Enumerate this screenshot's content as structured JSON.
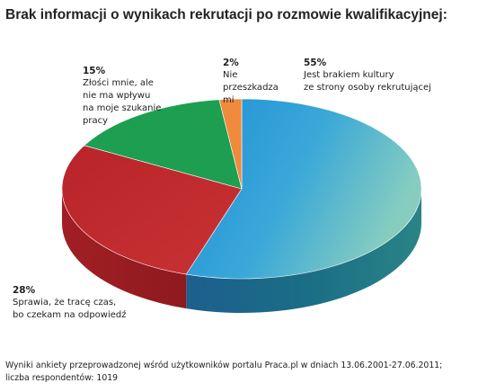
{
  "title": "Brak informacji o wynikach rekrutacji po rozmowie kwalifikacyjnej:",
  "chart_data": {
    "type": "pie",
    "style": "3d",
    "slices": [
      {
        "label": "Jest brakiem kultury\nze strony osoby rekrutującej",
        "value": 55,
        "display": "55%",
        "color_top": "#2a9fd8",
        "color_top_light": "#72c6c6",
        "color_side": "#1a6e86"
      },
      {
        "label": "Sprawia, że tracę czas,\nbo czekam na odpowiedź",
        "value": 28,
        "display": "28%",
        "color_top": "#c0272d",
        "color_top_light": "#d23a3a",
        "color_side": "#9e1f22"
      },
      {
        "label": "Złości mnie, ale\nnie ma wpływu\nna moje szukanie\npracy",
        "value": 15,
        "display": "15%",
        "color_top": "#1e9e50",
        "color_top_light": "#23a655",
        "color_side": "#137a3a"
      },
      {
        "label": "Nie\nprzeszkadza\nmi",
        "value": 2,
        "display": "2%",
        "color_top": "#f08a3c",
        "color_top_light": "#f5a05a",
        "color_side": "#c06a28"
      }
    ]
  },
  "footer": {
    "line1": "Wyniki ankiety przeprowadzonej wśród użytkowników portalu Praca.pl w dniach 13.06.2001-27.06.2011;",
    "line2": "liczba respondentów: 1019"
  }
}
